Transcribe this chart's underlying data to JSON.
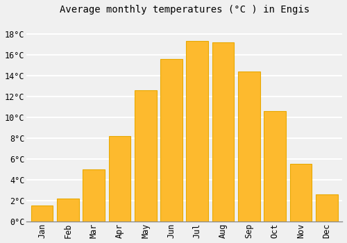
{
  "title": "Average monthly temperatures (°C ) in Engis",
  "months": [
    "Jan",
    "Feb",
    "Mar",
    "Apr",
    "May",
    "Jun",
    "Jul",
    "Aug",
    "Sep",
    "Oct",
    "Nov",
    "Dec"
  ],
  "values": [
    1.5,
    2.2,
    5.0,
    8.2,
    12.6,
    15.6,
    17.3,
    17.2,
    14.4,
    10.6,
    5.5,
    2.6
  ],
  "bar_color": "#FDBA2E",
  "bar_edge_color": "#E8A800",
  "background_color": "#f0f0f0",
  "grid_color": "#ffffff",
  "yticks": [
    0,
    2,
    4,
    6,
    8,
    10,
    12,
    14,
    16,
    18
  ],
  "ylim": [
    0,
    19.5
  ],
  "title_fontsize": 10,
  "tick_fontsize": 8.5,
  "bar_width": 0.85
}
